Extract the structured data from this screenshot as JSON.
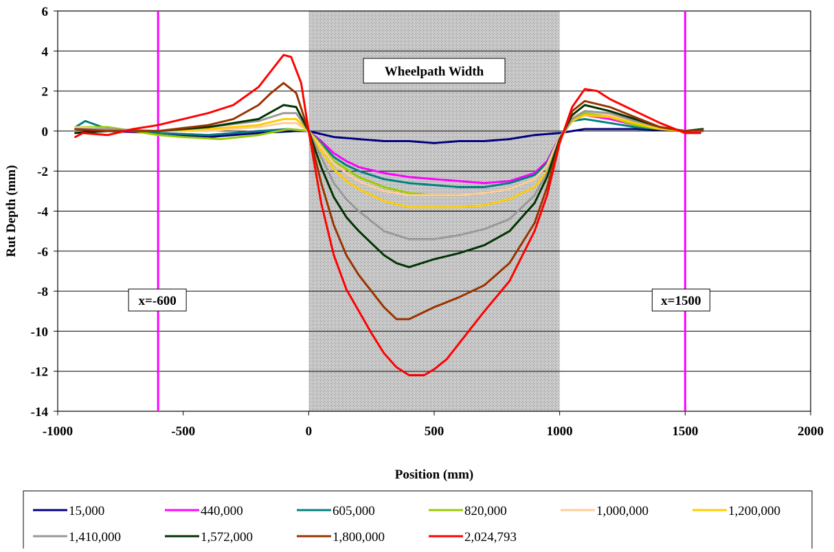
{
  "chart_data": {
    "type": "line",
    "title": "",
    "xlabel": "Position (mm)",
    "ylabel": "Rut Depth (mm)",
    "xlim": [
      -1000,
      2000
    ],
    "ylim": [
      -14,
      6
    ],
    "xticks": [
      -1000,
      -500,
      0,
      500,
      1000,
      1500,
      2000
    ],
    "yticks": [
      -14,
      -12,
      -10,
      -8,
      -6,
      -4,
      -2,
      0,
      2,
      4,
      6
    ],
    "grid": "horizontal",
    "legend_position": "bottom",
    "wheelpath": {
      "x0": 0,
      "x1": 1000,
      "label": "Wheelpath Width"
    },
    "reference_lines": [
      {
        "x": -600,
        "label": "x=-600",
        "color": "#ff00ff"
      },
      {
        "x": 1500,
        "label": "x=1500",
        "color": "#ff00ff"
      }
    ],
    "series": [
      {
        "name": "15,000",
        "color": "#000080",
        "points": [
          [
            -930,
            0.1
          ],
          [
            -800,
            0
          ],
          [
            -600,
            -0.1
          ],
          [
            -400,
            -0.3
          ],
          [
            -200,
            -0.1
          ],
          [
            -50,
            0
          ],
          [
            0,
            0
          ],
          [
            100,
            -0.3
          ],
          [
            200,
            -0.4
          ],
          [
            300,
            -0.5
          ],
          [
            400,
            -0.5
          ],
          [
            500,
            -0.6
          ],
          [
            600,
            -0.5
          ],
          [
            700,
            -0.5
          ],
          [
            800,
            -0.4
          ],
          [
            900,
            -0.2
          ],
          [
            1000,
            -0.1
          ],
          [
            1100,
            0.1
          ],
          [
            1200,
            0.1
          ],
          [
            1300,
            0.1
          ],
          [
            1400,
            0.05
          ],
          [
            1500,
            0
          ],
          [
            1570,
            0.1
          ]
        ]
      },
      {
        "name": "440,000",
        "color": "#ff00ff",
        "points": [
          [
            -930,
            0.1
          ],
          [
            -800,
            0.05
          ],
          [
            -600,
            -0.1
          ],
          [
            -400,
            -0.2
          ],
          [
            -200,
            0
          ],
          [
            -80,
            0.1
          ],
          [
            0,
            0
          ],
          [
            50,
            -0.5
          ],
          [
            100,
            -1.1
          ],
          [
            150,
            -1.5
          ],
          [
            200,
            -1.8
          ],
          [
            300,
            -2.1
          ],
          [
            400,
            -2.3
          ],
          [
            500,
            -2.4
          ],
          [
            600,
            -2.5
          ],
          [
            700,
            -2.6
          ],
          [
            800,
            -2.5
          ],
          [
            900,
            -2.1
          ],
          [
            950,
            -1.5
          ],
          [
            1000,
            -0.3
          ],
          [
            1050,
            0.5
          ],
          [
            1100,
            0.8
          ],
          [
            1200,
            0.6
          ],
          [
            1300,
            0.3
          ],
          [
            1400,
            0.1
          ],
          [
            1500,
            0
          ],
          [
            1570,
            0
          ]
        ]
      },
      {
        "name": "605,000",
        "color": "#008080",
        "points": [
          [
            -930,
            0.2
          ],
          [
            -890,
            0.5
          ],
          [
            -800,
            0.1
          ],
          [
            -600,
            -0.1
          ],
          [
            -400,
            -0.2
          ],
          [
            -200,
            0
          ],
          [
            -80,
            0.1
          ],
          [
            0,
            0
          ],
          [
            50,
            -0.6
          ],
          [
            100,
            -1.3
          ],
          [
            150,
            -1.7
          ],
          [
            200,
            -2.0
          ],
          [
            300,
            -2.4
          ],
          [
            400,
            -2.6
          ],
          [
            500,
            -2.7
          ],
          [
            600,
            -2.8
          ],
          [
            700,
            -2.8
          ],
          [
            800,
            -2.6
          ],
          [
            900,
            -2.2
          ],
          [
            950,
            -1.6
          ],
          [
            1000,
            -0.3
          ],
          [
            1050,
            0.5
          ],
          [
            1100,
            0.6
          ],
          [
            1200,
            0.4
          ],
          [
            1300,
            0.2
          ],
          [
            1400,
            0.1
          ],
          [
            1500,
            0
          ],
          [
            1570,
            0
          ]
        ]
      },
      {
        "name": "820,000",
        "color": "#99cc00",
        "points": [
          [
            -930,
            0.2
          ],
          [
            -800,
            0.2
          ],
          [
            -700,
            0
          ],
          [
            -600,
            -0.2
          ],
          [
            -500,
            -0.3
          ],
          [
            -350,
            -0.4
          ],
          [
            -200,
            -0.2
          ],
          [
            -80,
            0.1
          ],
          [
            0,
            0
          ],
          [
            50,
            -0.7
          ],
          [
            100,
            -1.5
          ],
          [
            150,
            -1.9
          ],
          [
            200,
            -2.3
          ],
          [
            300,
            -2.8
          ],
          [
            400,
            -3.1
          ],
          [
            500,
            -3.2
          ],
          [
            600,
            -3.2
          ],
          [
            700,
            -3.1
          ],
          [
            800,
            -2.9
          ],
          [
            900,
            -2.4
          ],
          [
            950,
            -1.7
          ],
          [
            1000,
            -0.3
          ],
          [
            1050,
            0.6
          ],
          [
            1100,
            0.9
          ],
          [
            1200,
            0.7
          ],
          [
            1300,
            0.3
          ],
          [
            1400,
            0.1
          ],
          [
            1500,
            0
          ],
          [
            1570,
            0.05
          ]
        ]
      },
      {
        "name": "1,000,000",
        "color": "#ffcc99",
        "points": [
          [
            -930,
            0.2
          ],
          [
            -800,
            0.1
          ],
          [
            -600,
            0
          ],
          [
            -400,
            0
          ],
          [
            -200,
            0.2
          ],
          [
            -100,
            0.4
          ],
          [
            -50,
            0.4
          ],
          [
            0,
            0
          ],
          [
            50,
            -0.8
          ],
          [
            100,
            -1.6
          ],
          [
            150,
            -2.1
          ],
          [
            200,
            -2.5
          ],
          [
            300,
            -3.0
          ],
          [
            400,
            -3.2
          ],
          [
            500,
            -3.2
          ],
          [
            600,
            -3.2
          ],
          [
            700,
            -3.1
          ],
          [
            800,
            -2.9
          ],
          [
            900,
            -2.4
          ],
          [
            950,
            -1.7
          ],
          [
            1000,
            -0.3
          ],
          [
            1050,
            0.7
          ],
          [
            1100,
            1.0
          ],
          [
            1200,
            0.8
          ],
          [
            1300,
            0.5
          ],
          [
            1400,
            0.2
          ],
          [
            1500,
            0
          ],
          [
            1570,
            0.05
          ]
        ]
      },
      {
        "name": "1,200,000",
        "color": "#ffcc00",
        "points": [
          [
            -930,
            0.1
          ],
          [
            -800,
            0.1
          ],
          [
            -600,
            0
          ],
          [
            -400,
            0.1
          ],
          [
            -200,
            0.3
          ],
          [
            -100,
            0.6
          ],
          [
            -50,
            0.6
          ],
          [
            0,
            0
          ],
          [
            50,
            -1.0
          ],
          [
            100,
            -1.9
          ],
          [
            150,
            -2.5
          ],
          [
            200,
            -2.9
          ],
          [
            300,
            -3.5
          ],
          [
            400,
            -3.8
          ],
          [
            500,
            -3.8
          ],
          [
            600,
            -3.8
          ],
          [
            700,
            -3.7
          ],
          [
            800,
            -3.4
          ],
          [
            900,
            -2.8
          ],
          [
            950,
            -2.0
          ],
          [
            1000,
            -0.4
          ],
          [
            1050,
            0.5
          ],
          [
            1100,
            0.8
          ],
          [
            1200,
            0.7
          ],
          [
            1300,
            0.4
          ],
          [
            1400,
            0.1
          ],
          [
            1500,
            0
          ],
          [
            1570,
            0.05
          ]
        ]
      },
      {
        "name": "1,410,000",
        "color": "#999999",
        "points": [
          [
            -930,
            0.1
          ],
          [
            -800,
            0.1
          ],
          [
            -600,
            0
          ],
          [
            -400,
            0.2
          ],
          [
            -200,
            0.5
          ],
          [
            -100,
            0.9
          ],
          [
            -50,
            0.9
          ],
          [
            0,
            0
          ],
          [
            50,
            -1.3
          ],
          [
            100,
            -2.6
          ],
          [
            150,
            -3.4
          ],
          [
            200,
            -4.0
          ],
          [
            300,
            -5.0
          ],
          [
            400,
            -5.4
          ],
          [
            500,
            -5.4
          ],
          [
            600,
            -5.2
          ],
          [
            700,
            -4.9
          ],
          [
            800,
            -4.4
          ],
          [
            900,
            -3.2
          ],
          [
            950,
            -2.1
          ],
          [
            1000,
            -0.4
          ],
          [
            1050,
            0.6
          ],
          [
            1100,
            1.0
          ],
          [
            1200,
            0.9
          ],
          [
            1300,
            0.5
          ],
          [
            1400,
            0.2
          ],
          [
            1500,
            0
          ],
          [
            1570,
            0.05
          ]
        ]
      },
      {
        "name": "1,572,000",
        "color": "#003300",
        "points": [
          [
            -930,
            -0.1
          ],
          [
            -800,
            0
          ],
          [
            -600,
            0
          ],
          [
            -400,
            0.2
          ],
          [
            -200,
            0.6
          ],
          [
            -100,
            1.3
          ],
          [
            -50,
            1.2
          ],
          [
            0,
            0
          ],
          [
            50,
            -1.8
          ],
          [
            100,
            -3.3
          ],
          [
            150,
            -4.3
          ],
          [
            200,
            -5.0
          ],
          [
            300,
            -6.2
          ],
          [
            350,
            -6.6
          ],
          [
            400,
            -6.8
          ],
          [
            450,
            -6.6
          ],
          [
            500,
            -6.4
          ],
          [
            600,
            -6.1
          ],
          [
            700,
            -5.7
          ],
          [
            800,
            -5.0
          ],
          [
            900,
            -3.6
          ],
          [
            950,
            -2.3
          ],
          [
            1000,
            -0.4
          ],
          [
            1050,
            0.8
          ],
          [
            1100,
            1.3
          ],
          [
            1200,
            1.0
          ],
          [
            1300,
            0.6
          ],
          [
            1400,
            0.2
          ],
          [
            1500,
            0
          ],
          [
            1570,
            0.1
          ]
        ]
      },
      {
        "name": "1,800,000",
        "color": "#993300",
        "points": [
          [
            -930,
            0.1
          ],
          [
            -800,
            0
          ],
          [
            -600,
            0
          ],
          [
            -400,
            0.3
          ],
          [
            -300,
            0.6
          ],
          [
            -200,
            1.3
          ],
          [
            -150,
            1.9
          ],
          [
            -100,
            2.4
          ],
          [
            -50,
            1.9
          ],
          [
            0,
            0
          ],
          [
            50,
            -2.6
          ],
          [
            100,
            -4.7
          ],
          [
            150,
            -6.2
          ],
          [
            200,
            -7.2
          ],
          [
            250,
            -8.0
          ],
          [
            300,
            -8.8
          ],
          [
            350,
            -9.4
          ],
          [
            400,
            -9.4
          ],
          [
            500,
            -8.8
          ],
          [
            600,
            -8.3
          ],
          [
            700,
            -7.7
          ],
          [
            800,
            -6.6
          ],
          [
            900,
            -4.6
          ],
          [
            950,
            -2.8
          ],
          [
            1000,
            -0.5
          ],
          [
            1050,
            1.0
          ],
          [
            1100,
            1.5
          ],
          [
            1200,
            1.2
          ],
          [
            1300,
            0.7
          ],
          [
            1400,
            0.2
          ],
          [
            1500,
            0
          ],
          [
            1570,
            0.05
          ]
        ]
      },
      {
        "name": "2,024,793",
        "color": "#ff0000",
        "points": [
          [
            -930,
            -0.3
          ],
          [
            -900,
            -0.1
          ],
          [
            -800,
            -0.2
          ],
          [
            -700,
            0.1
          ],
          [
            -600,
            0.3
          ],
          [
            -500,
            0.6
          ],
          [
            -400,
            0.9
          ],
          [
            -300,
            1.3
          ],
          [
            -200,
            2.2
          ],
          [
            -150,
            3.0
          ],
          [
            -100,
            3.8
          ],
          [
            -70,
            3.7
          ],
          [
            -30,
            2.4
          ],
          [
            0,
            0
          ],
          [
            50,
            -3.6
          ],
          [
            100,
            -6.2
          ],
          [
            150,
            -7.9
          ],
          [
            200,
            -9.0
          ],
          [
            250,
            -10.1
          ],
          [
            300,
            -11.1
          ],
          [
            350,
            -11.8
          ],
          [
            400,
            -12.2
          ],
          [
            460,
            -12.2
          ],
          [
            500,
            -11.9
          ],
          [
            550,
            -11.4
          ],
          [
            600,
            -10.6
          ],
          [
            650,
            -9.8
          ],
          [
            700,
            -9.0
          ],
          [
            800,
            -7.5
          ],
          [
            900,
            -5.0
          ],
          [
            950,
            -3.2
          ],
          [
            1000,
            -0.6
          ],
          [
            1050,
            1.2
          ],
          [
            1100,
            2.1
          ],
          [
            1150,
            2.0
          ],
          [
            1200,
            1.6
          ],
          [
            1300,
            1.0
          ],
          [
            1400,
            0.4
          ],
          [
            1500,
            -0.1
          ],
          [
            1560,
            -0.1
          ]
        ]
      }
    ]
  }
}
